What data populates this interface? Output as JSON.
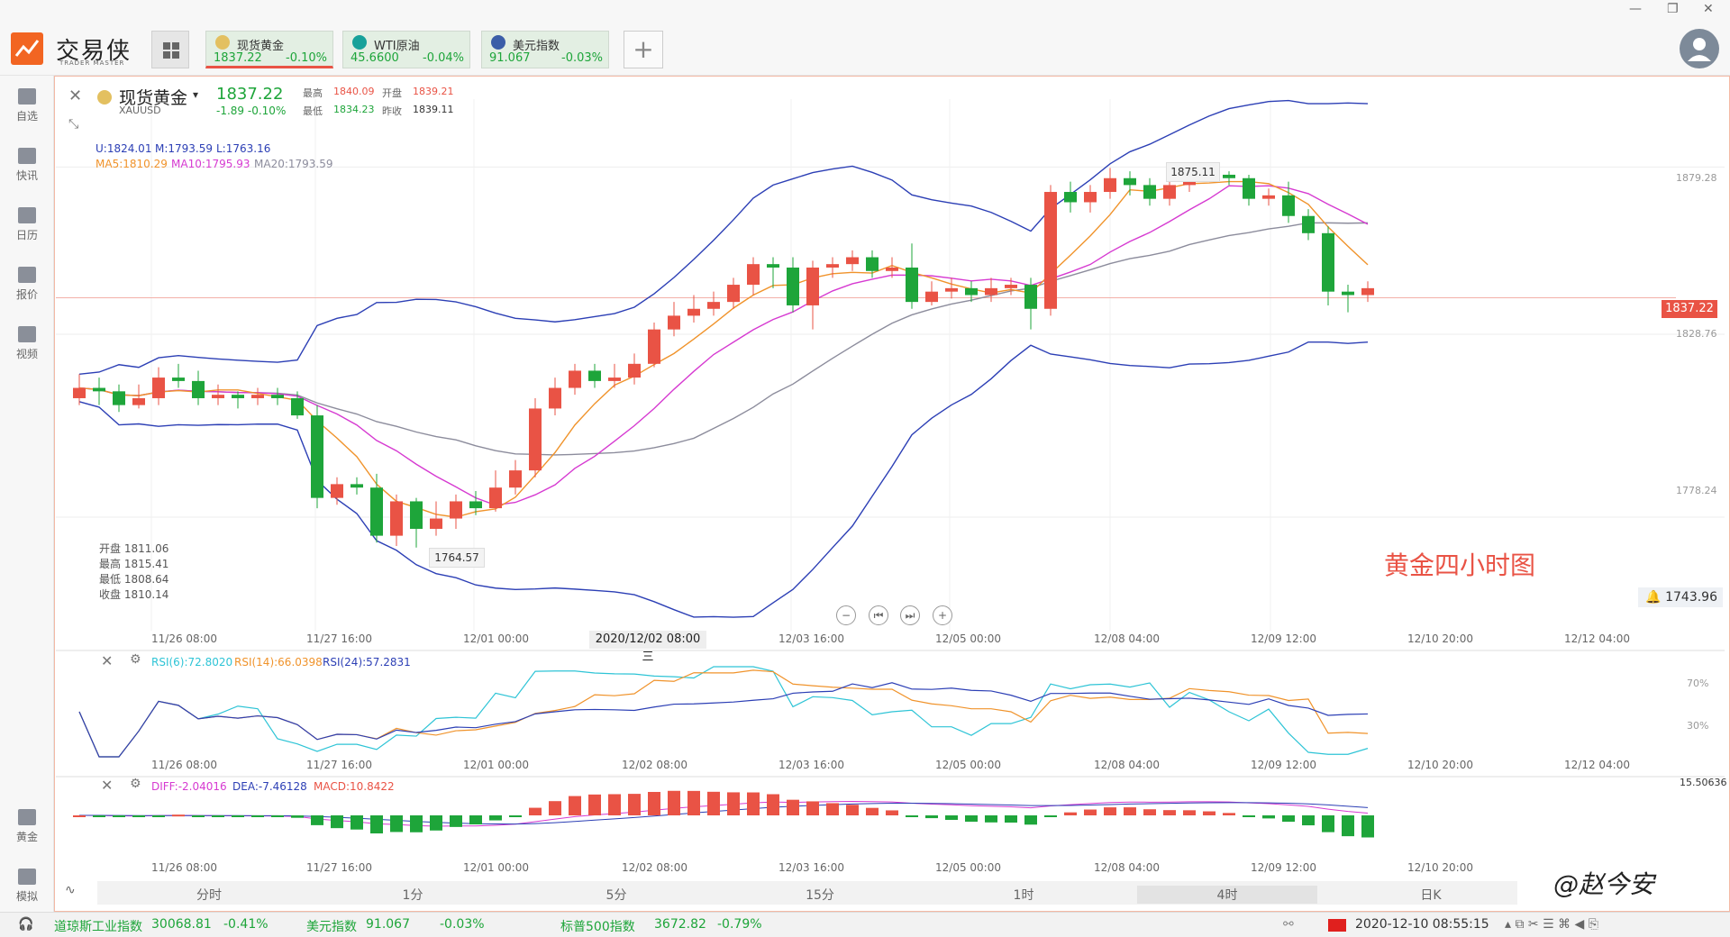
{
  "app": {
    "name": "交易侠",
    "sub": "TRADER MASTER"
  },
  "tabs": [
    {
      "name": "现货黄金",
      "price": "1837.22",
      "change": "-0.10%",
      "active": true,
      "color": "#e3c060"
    },
    {
      "name": "WTI原油",
      "price": "45.6600",
      "change": "-0.04%",
      "active": false,
      "color": "#17a19a"
    },
    {
      "name": "美元指数",
      "price": "91.067",
      "change": "-0.03%",
      "active": false,
      "color": "#3b5ea8"
    }
  ],
  "sidebar": [
    {
      "label": "自选",
      "icon": "bookmark-add-icon"
    },
    {
      "label": "快讯",
      "icon": "news-icon"
    },
    {
      "label": "日历",
      "icon": "calendar-icon"
    },
    {
      "label": "报价",
      "icon": "quote-chart-icon"
    },
    {
      "label": "视频",
      "icon": "video-icon"
    },
    {
      "label": "黄金",
      "icon": "gold-icon"
    },
    {
      "label": "模拟",
      "icon": "simulate-icon"
    }
  ],
  "header": {
    "title": "现货黄金",
    "symbol": "XAUUSD",
    "price": "1837.22",
    "change": "-1.89",
    "change_pct": "-0.10%",
    "high_label": "最高",
    "high": "1840.09",
    "open_label": "开盘",
    "open": "1839.21",
    "low_label": "最低",
    "low": "1834.23",
    "prev_label": "昨收",
    "prev": "1839.11"
  },
  "boll": {
    "u": "U:1824.01",
    "m": "M:1793.59",
    "l": "L:1763.16"
  },
  "ma": {
    "ma5": "MA5:1810.29",
    "ma10": "MA10:1795.93",
    "ma20": "MA20:1793.59"
  },
  "ohlc_box": {
    "open": "开盘 1811.06",
    "high": "最高 1815.41",
    "low": "最低 1808.64",
    "close": "收盘 1810.14"
  },
  "price_axis": {
    "tick1": "1879.28",
    "tick2": "1828.76",
    "tick3": "1778.24"
  },
  "current_price_tag": "1837.22",
  "high_mark": "1875.11",
  "low_mark": "1764.57",
  "alert_value": "1743.96",
  "annotation": "黄金四小时图",
  "crosshair_date": "2020/12/02 08:00 三",
  "x_axis_main": [
    "11/26 08:00",
    "11/27 16:00",
    "12/01 00:00",
    "12/03 16:00",
    "12/05 00:00",
    "12/08 04:00",
    "12/09 12:00",
    "12/10 20:00",
    "12/12 04:00"
  ],
  "x_axis_sub": [
    "11/26 08:00",
    "11/27 16:00",
    "12/01 00:00",
    "12/02 08:00",
    "12/03 16:00",
    "12/05 00:00",
    "12/08 04:00",
    "12/09 12:00",
    "12/10 20:00",
    "12/12 04:00"
  ],
  "x_axis_macd": [
    "11/26 08:00",
    "11/27 16:00",
    "12/01 00:00",
    "12/02 08:00",
    "12/03 16:00",
    "12/05 00:00",
    "12/08 04:00",
    "12/09 12:00",
    "12/10 20:00"
  ],
  "rsi": {
    "r6": "RSI(6):72.8020",
    "r14": "RSI(14):66.0398",
    "r24": "RSI(24):57.2831",
    "lvl70": "70%",
    "lvl30": "30%"
  },
  "macd": {
    "diff": "DIFF:-2.04016",
    "dea": "DEA:-7.46128",
    "macd": "MACD:10.8422",
    "top": "15.50636"
  },
  "timeframes": [
    "分时",
    "1分",
    "5分",
    "15分",
    "1时",
    "4时",
    "日K"
  ],
  "active_timeframe": "4时",
  "status": [
    {
      "name": "道琼斯工业指数",
      "value": "30068.81",
      "chg": "-0.41%"
    },
    {
      "name": "美元指数",
      "value": "91.067",
      "chg": "-0.03%"
    },
    {
      "name": "标普500指数",
      "value": "3672.82",
      "chg": "-0.79%"
    }
  ],
  "datetime": "2020-12-10 08:55:15",
  "watermark": "@赵今安",
  "colors": {
    "up": "#e95345",
    "down": "#1ea53a",
    "boll": "#2c3fb5",
    "ma5": "#f0932b",
    "ma10": "#d63ad1",
    "ma20": "#8c8c9c"
  },
  "chart_data": {
    "type": "candlestick",
    "symbol": "XAUUSD",
    "interval": "4h",
    "ylim": [
      1743,
      1895
    ],
    "candles": [
      {
        "o": 1808,
        "c": 1811,
        "h": 1815,
        "l": 1806
      },
      {
        "o": 1811,
        "c": 1810,
        "h": 1814,
        "l": 1806
      },
      {
        "o": 1810,
        "c": 1806,
        "h": 1812,
        "l": 1804
      },
      {
        "o": 1806,
        "c": 1808,
        "h": 1812,
        "l": 1805
      },
      {
        "o": 1808,
        "c": 1814,
        "h": 1817,
        "l": 1806
      },
      {
        "o": 1814,
        "c": 1813,
        "h": 1818,
        "l": 1811
      },
      {
        "o": 1813,
        "c": 1808,
        "h": 1816,
        "l": 1806
      },
      {
        "o": 1808,
        "c": 1809,
        "h": 1812,
        "l": 1806
      },
      {
        "o": 1809,
        "c": 1808,
        "h": 1810,
        "l": 1805
      },
      {
        "o": 1808,
        "c": 1809,
        "h": 1811,
        "l": 1806
      },
      {
        "o": 1809,
        "c": 1808,
        "h": 1811,
        "l": 1806
      },
      {
        "o": 1808,
        "c": 1803,
        "h": 1810,
        "l": 1802
      },
      {
        "o": 1803,
        "c": 1779,
        "h": 1806,
        "l": 1776
      },
      {
        "o": 1779,
        "c": 1783,
        "h": 1785,
        "l": 1777
      },
      {
        "o": 1783,
        "c": 1782,
        "h": 1785,
        "l": 1780
      },
      {
        "o": 1782,
        "c": 1768,
        "h": 1786,
        "l": 1766
      },
      {
        "o": 1768,
        "c": 1778,
        "h": 1780,
        "l": 1765
      },
      {
        "o": 1778,
        "c": 1770,
        "h": 1779,
        "l": 1764.57
      },
      {
        "o": 1770,
        "c": 1773,
        "h": 1778,
        "l": 1768
      },
      {
        "o": 1773,
        "c": 1778,
        "h": 1780,
        "l": 1770
      },
      {
        "o": 1778,
        "c": 1776,
        "h": 1781,
        "l": 1774
      },
      {
        "o": 1776,
        "c": 1782,
        "h": 1787,
        "l": 1775
      },
      {
        "o": 1782,
        "c": 1787,
        "h": 1790,
        "l": 1780
      },
      {
        "o": 1787,
        "c": 1805,
        "h": 1808,
        "l": 1785
      },
      {
        "o": 1805,
        "c": 1811,
        "h": 1814,
        "l": 1803
      },
      {
        "o": 1811,
        "c": 1816,
        "h": 1818,
        "l": 1809
      },
      {
        "o": 1816,
        "c": 1813,
        "h": 1818,
        "l": 1811
      },
      {
        "o": 1813,
        "c": 1814,
        "h": 1818,
        "l": 1811
      },
      {
        "o": 1814,
        "c": 1818,
        "h": 1821,
        "l": 1812
      },
      {
        "o": 1818,
        "c": 1828,
        "h": 1830,
        "l": 1817
      },
      {
        "o": 1828,
        "c": 1832,
        "h": 1836,
        "l": 1826
      },
      {
        "o": 1832,
        "c": 1834,
        "h": 1838,
        "l": 1830
      },
      {
        "o": 1834,
        "c": 1836,
        "h": 1839,
        "l": 1832
      },
      {
        "o": 1836,
        "c": 1841,
        "h": 1843,
        "l": 1834
      },
      {
        "o": 1841,
        "c": 1847,
        "h": 1849,
        "l": 1838
      },
      {
        "o": 1847,
        "c": 1846,
        "h": 1849,
        "l": 1840
      },
      {
        "o": 1846,
        "c": 1835,
        "h": 1849,
        "l": 1833
      },
      {
        "o": 1835,
        "c": 1846,
        "h": 1848,
        "l": 1828
      },
      {
        "o": 1846,
        "c": 1847,
        "h": 1849,
        "l": 1843
      },
      {
        "o": 1847,
        "c": 1849,
        "h": 1851,
        "l": 1845
      },
      {
        "o": 1849,
        "c": 1845,
        "h": 1851,
        "l": 1843
      },
      {
        "o": 1845,
        "c": 1846,
        "h": 1849,
        "l": 1843
      },
      {
        "o": 1846,
        "c": 1836,
        "h": 1853,
        "l": 1834
      },
      {
        "o": 1836,
        "c": 1839,
        "h": 1842,
        "l": 1835
      },
      {
        "o": 1839,
        "c": 1840,
        "h": 1843,
        "l": 1837
      },
      {
        "o": 1840,
        "c": 1838,
        "h": 1842,
        "l": 1836
      },
      {
        "o": 1838,
        "c": 1840,
        "h": 1843,
        "l": 1836
      },
      {
        "o": 1840,
        "c": 1841,
        "h": 1843,
        "l": 1838
      },
      {
        "o": 1841,
        "c": 1834,
        "h": 1843,
        "l": 1828
      },
      {
        "o": 1834,
        "c": 1868,
        "h": 1870,
        "l": 1832
      },
      {
        "o": 1868,
        "c": 1865,
        "h": 1871,
        "l": 1862
      },
      {
        "o": 1865,
        "c": 1868,
        "h": 1870,
        "l": 1862
      },
      {
        "o": 1868,
        "c": 1872,
        "h": 1875,
        "l": 1866
      },
      {
        "o": 1872,
        "c": 1870,
        "h": 1874,
        "l": 1867
      },
      {
        "o": 1870,
        "c": 1866,
        "h": 1872,
        "l": 1864
      },
      {
        "o": 1866,
        "c": 1870,
        "h": 1872,
        "l": 1864
      },
      {
        "o": 1870,
        "c": 1874,
        "h": 1875.11,
        "l": 1868
      },
      {
        "o": 1874,
        "c": 1873,
        "h": 1875,
        "l": 1872
      },
      {
        "o": 1873,
        "c": 1872,
        "h": 1874,
        "l": 1870
      },
      {
        "o": 1872,
        "c": 1866,
        "h": 1873,
        "l": 1864
      },
      {
        "o": 1866,
        "c": 1867,
        "h": 1869,
        "l": 1864
      },
      {
        "o": 1867,
        "c": 1861,
        "h": 1871,
        "l": 1859
      },
      {
        "o": 1861,
        "c": 1856,
        "h": 1863,
        "l": 1854
      },
      {
        "o": 1856,
        "c": 1839,
        "h": 1858,
        "l": 1835
      },
      {
        "o": 1839,
        "c": 1838,
        "h": 1841,
        "l": 1833
      },
      {
        "o": 1838,
        "c": 1840,
        "h": 1842,
        "l": 1836
      }
    ]
  }
}
